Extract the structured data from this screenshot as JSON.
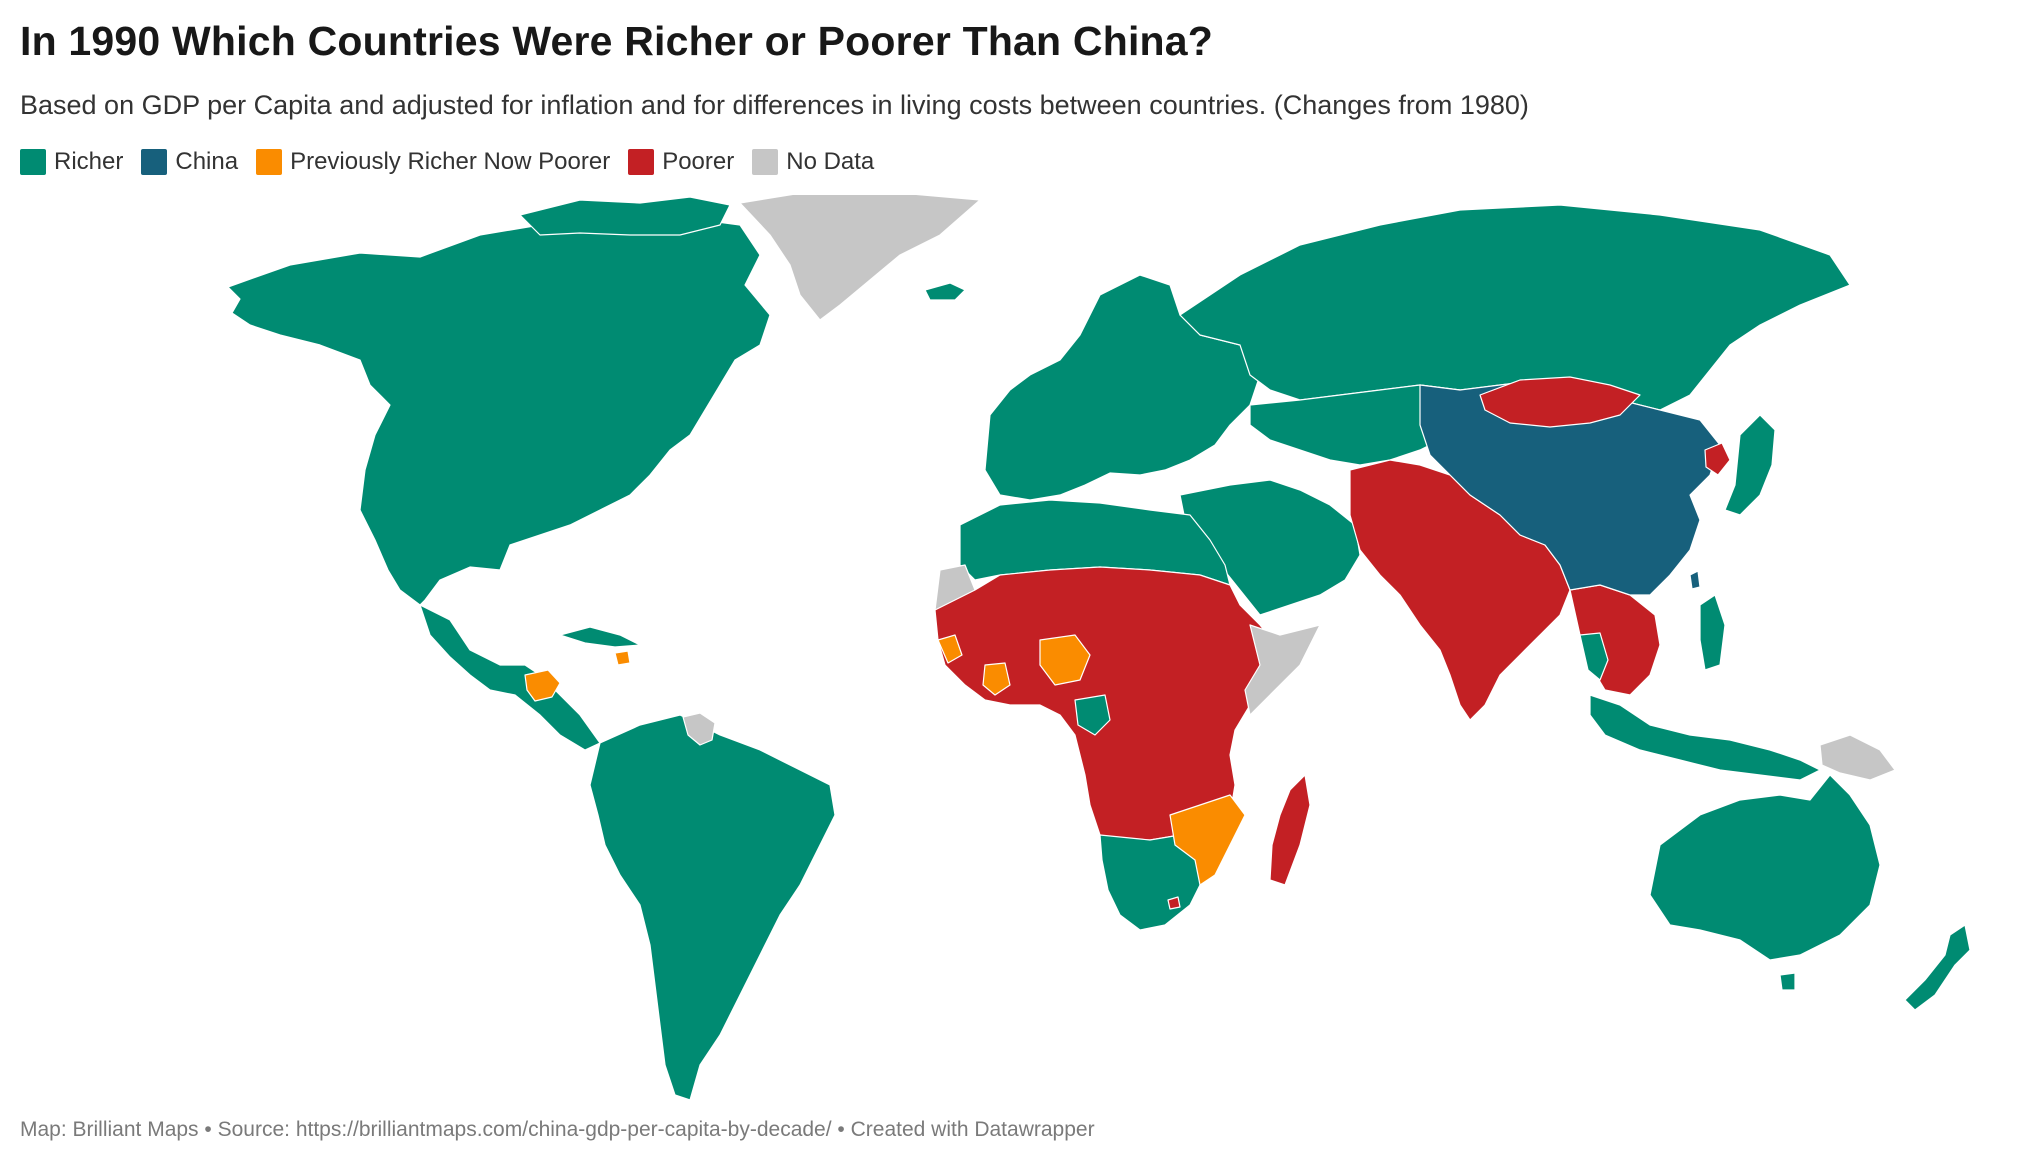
{
  "header": {
    "title": "In 1990 Which Countries Were Richer or Poorer Than China?",
    "subtitle": "Based on GDP per Capita and adjusted for inflation and for differences in living costs between countries. (Changes from 1980)"
  },
  "legend": {
    "items": [
      {
        "label": "Richer",
        "color": "#008b72"
      },
      {
        "label": "China",
        "color": "#17607c"
      },
      {
        "label": "Previously Richer Now Poorer",
        "color": "#fa8c00"
      },
      {
        "label": "Poorer",
        "color": "#c32024"
      },
      {
        "label": "No Data",
        "color": "#c6c6c6"
      }
    ]
  },
  "colors": {
    "richer": "#008b72",
    "china": "#17607c",
    "prev_richer_now_poorer": "#fa8c00",
    "poorer": "#c32024",
    "no_data": "#c6c6c6",
    "border": "#ffffff"
  },
  "footer": {
    "map_credit": "Map: Brilliant Maps",
    "separator": " • ",
    "source_label": "Source: ",
    "source_url": "https://brilliantmaps.com/china-gdp-per-capita-by-decade/",
    "created_with": "Created with Datawrapper"
  }
}
